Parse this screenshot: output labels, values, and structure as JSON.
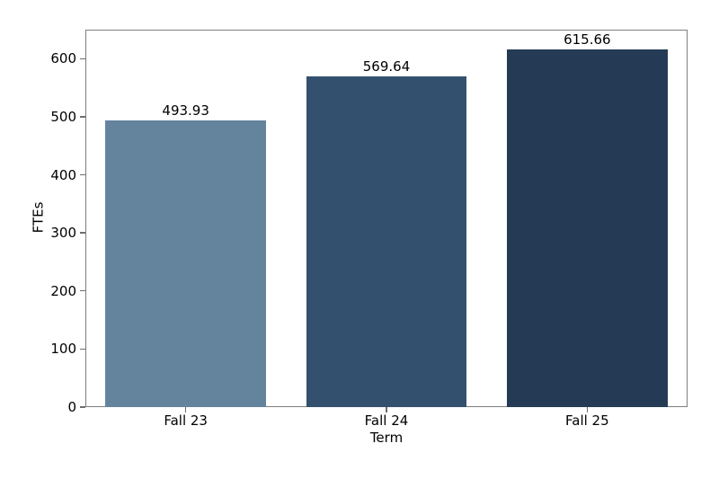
{
  "chart_data": {
    "type": "bar",
    "categories": [
      "Fall 23",
      "Fall 24",
      "Fall 25"
    ],
    "values": [
      493.93,
      569.64,
      615.66
    ],
    "value_labels": [
      "493.93",
      "569.64",
      "615.66"
    ],
    "bar_colors": [
      "#64849E",
      "#34506F",
      "#253B55"
    ],
    "xlabel": "Term",
    "ylabel": "FTEs",
    "yticks": [
      0,
      100,
      200,
      300,
      400,
      500,
      600
    ],
    "ylim": [
      0,
      650
    ],
    "grid": false,
    "legend_position": "none",
    "title": "",
    "spine_color": "#7f7f7f",
    "background_color": "#ffffff",
    "text_color": "#000000"
  }
}
